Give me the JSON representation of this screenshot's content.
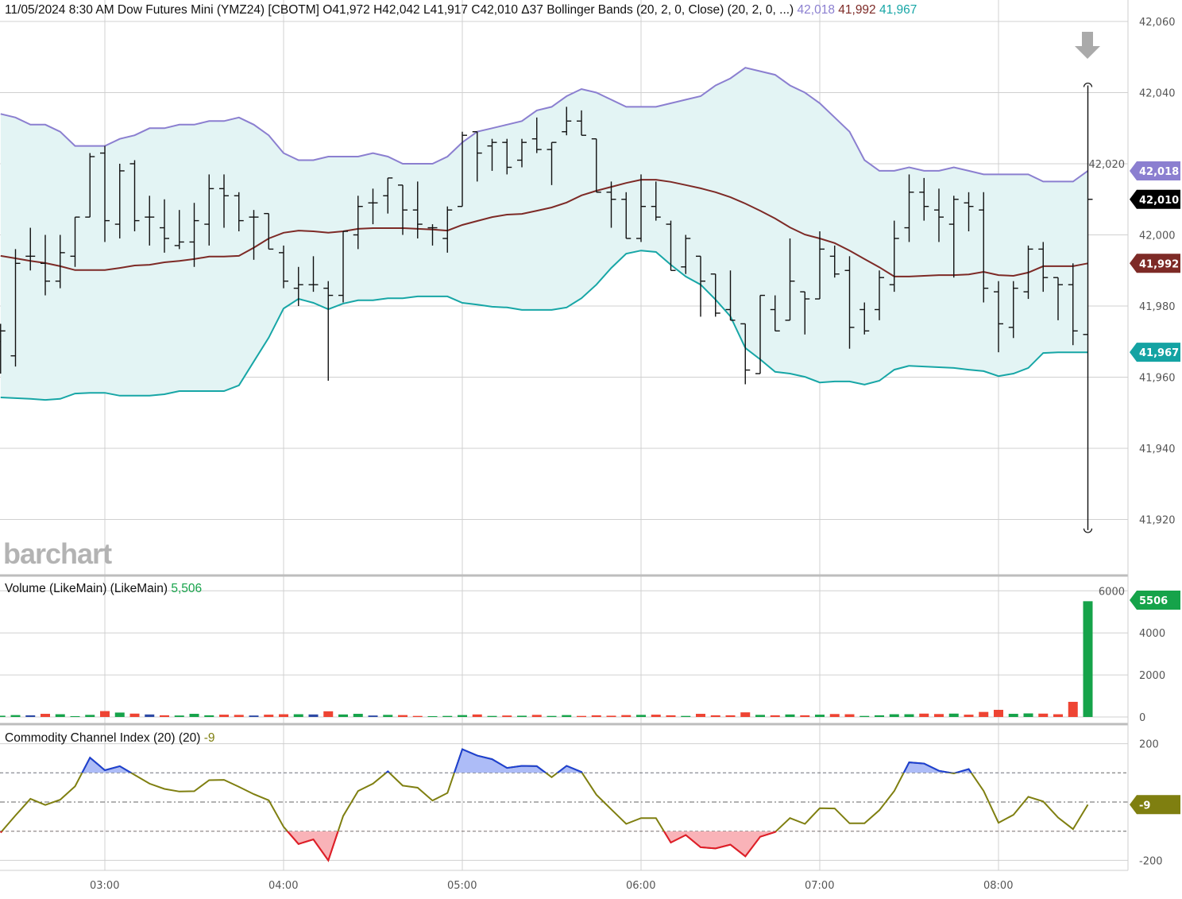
{
  "header": {
    "datetime": "11/05/2024 8:30 AM",
    "instrument": "Dow Futures Mini (YMZ24) [CBOTM]",
    "open": "O41,972",
    "high": "H42,042",
    "low": "L41,917",
    "close": "C42,010",
    "change": "Δ37",
    "study": "Bollinger Bands (20, 2, 0, Close)",
    "study_params": "(20, 2, 0, ...)",
    "upper_value": "42,018",
    "middle_value": "41,992",
    "lower_value": "41,967"
  },
  "volume_header": {
    "label": "Volume (LikeMain)",
    "params": "(LikeMain)",
    "value": "5,506"
  },
  "cci_header": {
    "label": "Commodity Channel Index (20)",
    "params": "(20)",
    "value": "-9"
  },
  "logo": "barchart",
  "colors": {
    "upper_band": "#8b7fd0",
    "middle_band": "#7d2a26",
    "lower_band": "#17a6a6",
    "band_fill": "#e3f4f4",
    "price_bar": "#111111",
    "volume_up": "#16a34a",
    "volume_down": "#ee4433",
    "volume_unchanged": "#2d4aa5",
    "cci_line": "#7f7f10",
    "cci_overbought": "#1c3fd6",
    "cci_overbought_fill": "#adbcf7",
    "cci_oversold": "#e31b2b",
    "cci_oversold_fill": "#f9b3b8"
  },
  "badges": {
    "upper": "42,018",
    "last": "42,010",
    "middle": "41,992",
    "lower": "41,967",
    "volume": "5506",
    "cci": "-9"
  },
  "chart_data": [
    {
      "type": "ohlc",
      "title": "Dow Futures Mini (YMZ24) [CBOTM]",
      "price_ticks": [
        "42,060",
        "42,040",
        "42,020",
        "42,000",
        "41,980",
        "41,960",
        "41,940",
        "41,920"
      ],
      "price_tick_values": [
        42060,
        42040,
        42020,
        42000,
        41980,
        41960,
        41940,
        41920
      ],
      "x_ticks": [
        "03:00",
        "04:00",
        "05:00",
        "06:00",
        "07:00",
        "08:00"
      ],
      "interval": "5 min",
      "grid": true,
      "times": [
        "02:25",
        "02:30",
        "02:35",
        "02:40",
        "02:45",
        "02:50",
        "02:55",
        "03:00",
        "03:05",
        "03:10",
        "03:15",
        "03:20",
        "03:25",
        "03:30",
        "03:35",
        "03:40",
        "03:45",
        "03:50",
        "03:55",
        "04:00",
        "04:05",
        "04:10",
        "04:15",
        "04:20",
        "04:25",
        "04:30",
        "04:35",
        "04:40",
        "04:45",
        "04:50",
        "04:55",
        "05:00",
        "05:05",
        "05:10",
        "05:15",
        "05:20",
        "05:25",
        "05:30",
        "05:35",
        "05:40",
        "05:45",
        "05:50",
        "05:55",
        "06:00",
        "06:05",
        "06:10",
        "06:15",
        "06:20",
        "06:25",
        "06:30",
        "06:35",
        "06:40",
        "06:45",
        "06:50",
        "06:55",
        "07:00",
        "07:05",
        "07:10",
        "07:15",
        "07:20",
        "07:25",
        "07:30",
        "07:35",
        "07:40",
        "07:45",
        "07:50",
        "07:55",
        "08:00",
        "08:05",
        "08:10",
        "08:15",
        "08:20",
        "08:25",
        "08:30"
      ],
      "ohlc": [
        [
          41970,
          41975,
          41961,
          41973
        ],
        [
          41966,
          41996,
          41963,
          41992
        ],
        [
          41994,
          42002,
          41990,
          41994
        ],
        [
          41992,
          42000,
          41983,
          41987
        ],
        [
          41987,
          42000,
          41985,
          41995
        ],
        [
          41994,
          42005,
          41991,
          42005
        ],
        [
          42005,
          42023,
          42005,
          42022
        ],
        [
          42023,
          42025,
          41998,
          42004
        ],
        [
          42003,
          42020,
          41999,
          42018
        ],
        [
          42020,
          42021,
          42001,
          42004
        ],
        [
          42005,
          42011,
          41997,
          42005
        ],
        [
          42002,
          42010,
          41995,
          41999
        ],
        [
          41997,
          42007,
          41996,
          41998
        ],
        [
          41998,
          42009,
          41991,
          42004
        ],
        [
          42003,
          42017,
          41997,
          42013
        ],
        [
          42013,
          42017,
          42002,
          42011
        ],
        [
          42011,
          42012,
          42001,
          42004
        ],
        [
          42005,
          42007,
          41993,
          42005
        ],
        [
          42006,
          42006,
          41996,
          41996
        ],
        [
          41995,
          41997,
          41985,
          41987
        ],
        [
          41985,
          41991,
          41980,
          41986
        ],
        [
          41986,
          41994,
          41984,
          41986
        ],
        [
          41985,
          41987,
          41959,
          41983
        ],
        [
          41983,
          42001,
          41981,
          42001
        ],
        [
          42000,
          42011,
          41996,
          42008
        ],
        [
          42009,
          42013,
          42003,
          42009
        ],
        [
          42011,
          42016,
          42006,
          42016
        ],
        [
          42014,
          42014,
          42000,
          42007
        ],
        [
          42007,
          42015,
          41999,
          42003
        ],
        [
          42002,
          42003,
          41997,
          42002
        ],
        [
          41999,
          42008,
          41995,
          42007
        ],
        [
          42008,
          42029,
          42008,
          42028
        ],
        [
          42029,
          42029,
          42015,
          42023
        ],
        [
          42025,
          42027,
          42018,
          42026
        ],
        [
          42026,
          42027,
          42017,
          42019
        ],
        [
          42021,
          42027,
          42019,
          42026
        ],
        [
          42027,
          42033,
          42023,
          42024
        ],
        [
          42024,
          42026,
          42014,
          42026
        ],
        [
          42029,
          42036,
          42028,
          42032
        ],
        [
          42032,
          42035,
          42028,
          42028
        ],
        [
          42027,
          42027,
          42012,
          42012
        ],
        [
          42012,
          42015,
          42002,
          42010
        ],
        [
          42010,
          42012,
          41999,
          41999
        ],
        [
          41999,
          42017,
          41998,
          42008
        ],
        [
          42008,
          42015,
          42004,
          42005
        ],
        [
          42003,
          42004,
          41990,
          41990
        ],
        [
          41991,
          42000,
          41989,
          41999
        ],
        [
          41994,
          41994,
          41977,
          41987
        ],
        [
          41989,
          41989,
          41977,
          41978
        ],
        [
          41979,
          41990,
          41976,
          41976
        ],
        [
          41975,
          41975,
          41958,
          41962
        ],
        [
          41961,
          41983,
          41961,
          41983
        ],
        [
          41979,
          41983,
          41973,
          41973
        ],
        [
          41976,
          41999,
          41976,
          41987
        ],
        [
          41984,
          41984,
          41972,
          41982
        ],
        [
          41982,
          42001,
          41982,
          41996
        ],
        [
          41994,
          41997,
          41988,
          41989
        ],
        [
          41990,
          41994,
          41968,
          41974
        ],
        [
          41979,
          41981,
          41972,
          41973
        ],
        [
          41979,
          41990,
          41976,
          41988
        ],
        [
          41986,
          42004,
          41984,
          41999
        ],
        [
          42002,
          42017,
          41998,
          42012
        ],
        [
          42012,
          42016,
          42004,
          42008
        ],
        [
          42007,
          42013,
          41998,
          42005
        ],
        [
          42003,
          42011,
          41988,
          42010
        ],
        [
          42009,
          42012,
          42001,
          42008
        ],
        [
          42007,
          42012,
          41981,
          41985
        ],
        [
          41984,
          41987,
          41967,
          41975
        ],
        [
          41974,
          41987,
          41971,
          41985
        ],
        [
          41984,
          41997,
          41982,
          41996
        ],
        [
          41996,
          41998,
          41984,
          41988
        ],
        [
          41988,
          41988,
          41976,
          41986
        ],
        [
          41986,
          41992,
          41969,
          41973
        ],
        [
          41972,
          42042,
          41917,
          42010
        ]
      ],
      "bollinger": {
        "upper": [
          42034,
          42033,
          42031,
          42031,
          42029,
          42025,
          42025,
          42025,
          42027,
          42028,
          42030,
          42030,
          42031,
          42031,
          42032,
          42032,
          42033,
          42031,
          42028,
          42023,
          42021,
          42021,
          42022,
          42022,
          42022,
          42023,
          42022,
          42020,
          42020,
          42020,
          42022,
          42026,
          42029,
          42030,
          42031,
          42032,
          42035,
          42036,
          42039,
          42041,
          42040,
          42038,
          42036,
          42036,
          42036,
          42037,
          42038,
          42039,
          42042,
          42044,
          42047,
          42046,
          42045,
          42042,
          42040,
          42037,
          42033,
          42029,
          42021,
          42018,
          42018,
          42019,
          42018,
          42018,
          42019,
          42018,
          42017,
          42017,
          42017,
          42017,
          42015,
          42015,
          42015,
          42018
        ],
        "middle": [
          41994.1,
          41993.4,
          41992.7,
          41992.1,
          41991.2,
          41990.1,
          41990.1,
          41990.1,
          41990.7,
          41991.4,
          41991.6,
          41992.3,
          41992.7,
          41993.2,
          41993.9,
          41993.9,
          41994.1,
          41996.4,
          41999.0,
          42000.6,
          42001.2,
          42001.0,
          42000.6,
          42001.0,
          42001.7,
          42001.9,
          42001.9,
          42001.9,
          42001.7,
          42001.5,
          42001.2,
          42002.8,
          42003.9,
          42005.0,
          42005.7,
          42005.9,
          42006.8,
          42007.7,
          42009.1,
          42011.1,
          42012.4,
          42013.5,
          42014.6,
          42015.5,
          42015.5,
          42014.9,
          42014.0,
          42013.1,
          42012.0,
          42010.6,
          42008.8,
          42006.8,
          42004.6,
          42002.1,
          42000.1,
          41999.0,
          41997.7,
          41995.6,
          41993.2,
          41990.9,
          41988.3,
          41988.3,
          41988.5,
          41988.7,
          41988.7,
          41988.9,
          41989.6,
          41988.7,
          41988.5,
          41989.4,
          41991.2,
          41991.2,
          41991.2,
          41992.0
        ],
        "lower": [
          41954.3,
          41954.1,
          41953.9,
          41953.6,
          41953.9,
          41955.4,
          41955.6,
          41955.6,
          41954.8,
          41954.8,
          41954.8,
          41955.2,
          41956.1,
          41956.1,
          41956.1,
          41956.1,
          41957.7,
          41964.4,
          41971.1,
          41979.3,
          41982.0,
          41980.9,
          41979.1,
          41980.7,
          41981.6,
          41981.6,
          41982.2,
          41982.2,
          41982.7,
          41982.7,
          41982.7,
          41980.9,
          41980.4,
          41979.8,
          41979.6,
          41978.9,
          41978.9,
          41978.9,
          41979.6,
          41982.2,
          41986.0,
          41990.7,
          41994.7,
          41995.6,
          41995.2,
          41991.6,
          41988.3,
          41986.0,
          41981.8,
          41977.1,
          41968.2,
          41965.0,
          41961.5,
          41961.0,
          41960.1,
          41958.5,
          41958.8,
          41958.8,
          41957.9,
          41959.0,
          41962.1,
          41963.2,
          41963.0,
          41962.8,
          41962.6,
          41962.1,
          41961.7,
          41960.3,
          41961.0,
          41962.6,
          41966.8,
          41967.0,
          41967.0,
          41967.0
        ]
      },
      "ylim": [
        41910,
        42065
      ]
    },
    {
      "type": "bar",
      "title": "Volume (LikeMain)",
      "y_ticks": [
        "6000",
        "4000",
        "2000",
        "0"
      ],
      "y_tick_values": [
        6000,
        4000,
        2000,
        0
      ],
      "ylim": [
        0,
        6000
      ],
      "values": [
        60,
        90,
        80,
        150,
        130,
        40,
        100,
        280,
        210,
        160,
        120,
        80,
        70,
        150,
        80,
        110,
        100,
        70,
        110,
        130,
        130,
        120,
        270,
        120,
        150,
        70,
        100,
        90,
        50,
        40,
        50,
        90,
        120,
        50,
        70,
        60,
        100,
        50,
        90,
        50,
        80,
        60,
        90,
        100,
        110,
        80,
        50,
        150,
        80,
        80,
        220,
        100,
        80,
        120,
        80,
        110,
        140,
        130,
        50,
        80,
        130,
        130,
        160,
        140,
        160,
        110,
        240,
        340,
        150,
        170,
        160,
        130,
        720,
        5506
      ],
      "direction": [
        "u",
        "u",
        "n",
        "d",
        "u",
        "u",
        "u",
        "d",
        "u",
        "d",
        "n",
        "d",
        "u",
        "u",
        "u",
        "d",
        "d",
        "n",
        "d",
        "d",
        "u",
        "n",
        "d",
        "u",
        "u",
        "n",
        "u",
        "d",
        "d",
        "u",
        "u",
        "u",
        "d",
        "u",
        "d",
        "u",
        "d",
        "u",
        "u",
        "d",
        "d",
        "d",
        "d",
        "u",
        "d",
        "d",
        "u",
        "d",
        "d",
        "d",
        "d",
        "u",
        "d",
        "u",
        "d",
        "u",
        "d",
        "d",
        "u",
        "u",
        "u",
        "u",
        "d",
        "d",
        "u",
        "d",
        "d",
        "d",
        "u",
        "u",
        "d",
        "d",
        "d",
        "u"
      ]
    },
    {
      "type": "line",
      "title": "Commodity Channel Index (20)",
      "y_ticks": [
        "200",
        "-200"
      ],
      "y_tick_values": [
        200,
        -200
      ],
      "reference_lines": [
        100,
        0,
        -100
      ],
      "ylim": [
        -200,
        200
      ],
      "values": [
        -105,
        -46,
        11,
        -10,
        8,
        54,
        152,
        109,
        123,
        93,
        63,
        45,
        36,
        37,
        75,
        76,
        52,
        27,
        6,
        -85,
        -144,
        -128,
        -200,
        -48,
        38,
        63,
        105,
        56,
        49,
        5,
        31,
        181,
        159,
        147,
        117,
        124,
        123,
        85,
        124,
        103,
        25,
        -25,
        -75,
        -55,
        -55,
        -139,
        -113,
        -155,
        -159,
        -146,
        -186,
        -119,
        -103,
        -55,
        -75,
        -21,
        -22,
        -73,
        -73,
        -28,
        38,
        136,
        132,
        107,
        98,
        113,
        38,
        -71,
        -44,
        18,
        2,
        -53,
        -93,
        -9
      ]
    }
  ]
}
